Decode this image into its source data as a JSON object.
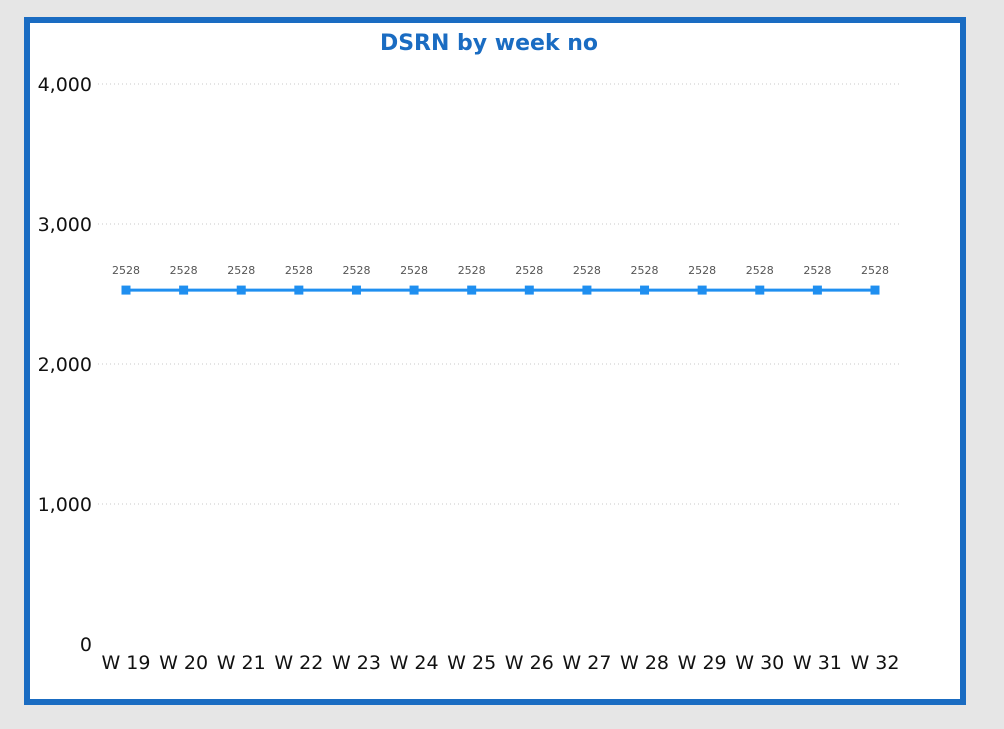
{
  "chart_data": {
    "type": "line",
    "title": "DSRN by week no",
    "xlabel": "",
    "ylabel": "",
    "categories": [
      "W 19",
      "W 20",
      "W 21",
      "W 22",
      "W 23",
      "W 24",
      "W 25",
      "W 26",
      "W 27",
      "W 28",
      "W 29",
      "W 30",
      "W 31",
      "W 32"
    ],
    "series": [
      {
        "values": [
          2528,
          2528,
          2528,
          2528,
          2528,
          2528,
          2528,
          2528,
          2528,
          2528,
          2528,
          2528,
          2528,
          2528
        ]
      }
    ],
    "ylim": [
      0,
      4000
    ],
    "yticks": [
      "0",
      "1,000",
      "2,000",
      "3,000",
      "4,000"
    ],
    "ytick_values": [
      0,
      1000,
      2000,
      3000,
      4000
    ],
    "grid": true,
    "grid_style": "dotted",
    "show_data_labels": true,
    "line_color": "#1f8ff0",
    "title_color": "#1a6cc2",
    "border_color": "#1a6cc2",
    "marker": "square"
  }
}
